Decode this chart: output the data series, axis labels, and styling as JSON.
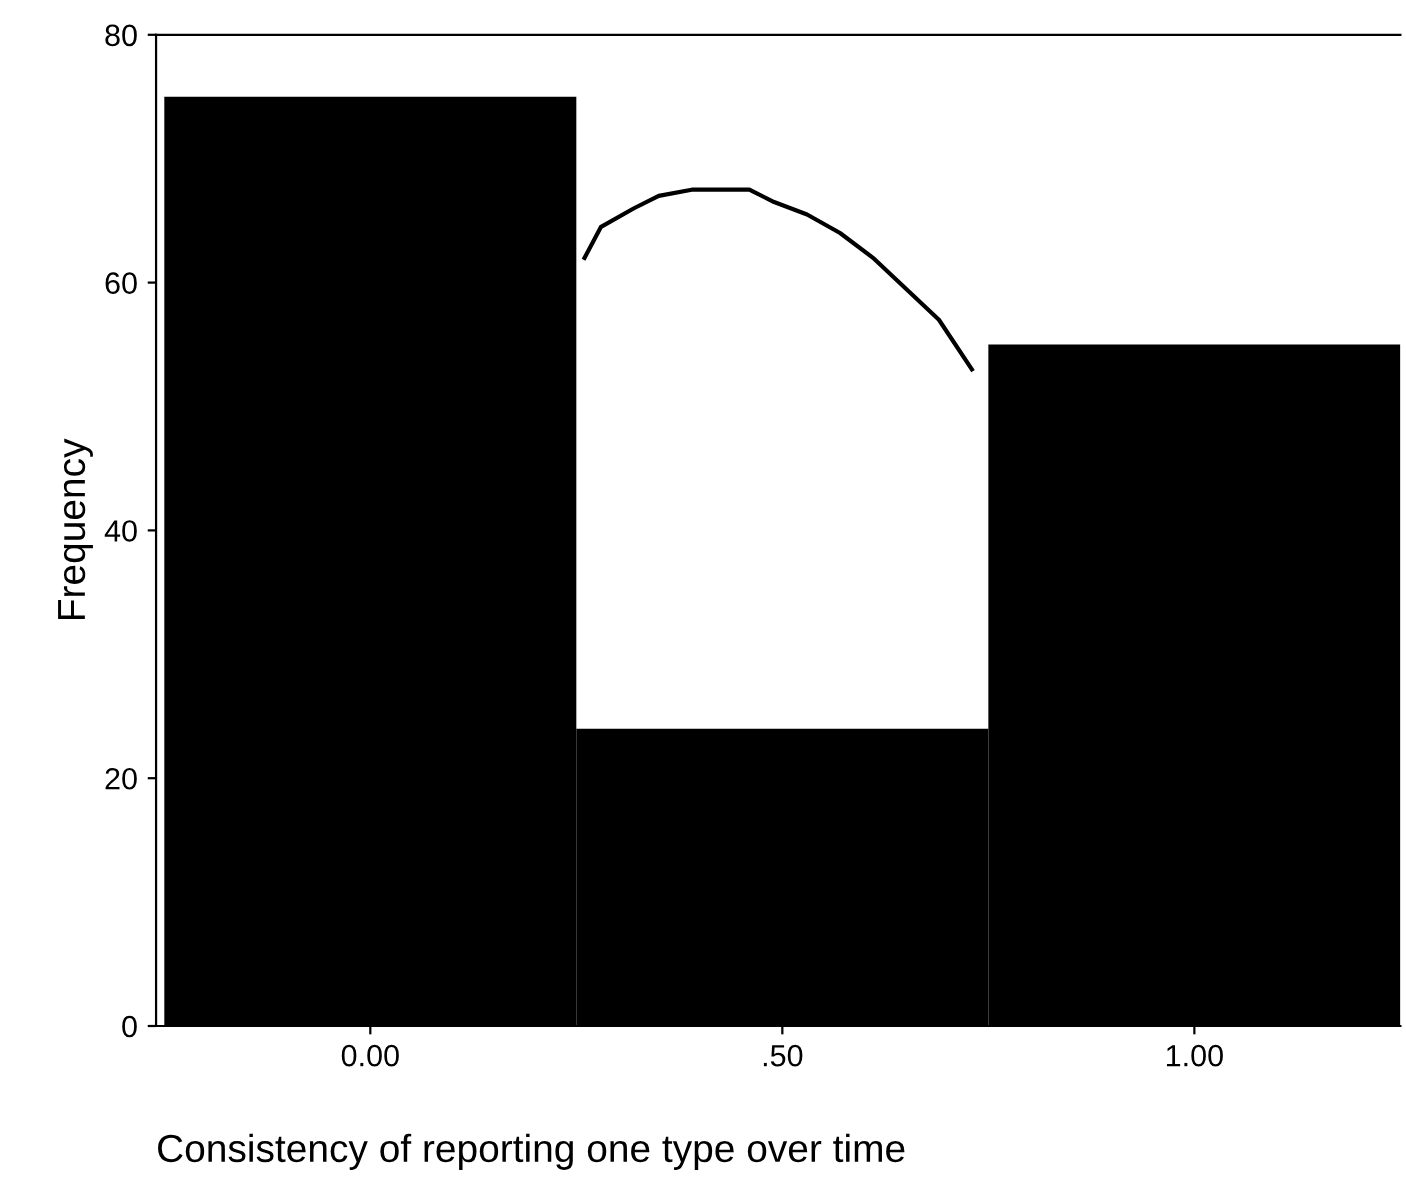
{
  "chart_data": {
    "type": "histogram",
    "xlabel": "Consistency of reporting one type over time",
    "ylabel": "Frequency",
    "bins": [
      -0.25,
      0.25,
      0.75,
      1.25
    ],
    "values": [
      75,
      24,
      55
    ],
    "color": "#000000",
    "series": [
      {
        "type": "line",
        "color": "#000000",
        "x": [
          0.26,
          0.28,
          0.32,
          0.35,
          0.39,
          0.46,
          0.49,
          0.53,
          0.57,
          0.61,
          0.65,
          0.69,
          0.73
        ],
        "values": [
          62,
          64.5,
          66,
          67,
          67.5,
          67.5,
          66.5,
          65.5,
          64,
          62,
          59.5,
          57,
          53
        ]
      }
    ],
    "xlim": [
      -0.26,
      1.25
    ],
    "ylim": [
      0,
      80
    ],
    "xticks": [
      {
        "value": 0,
        "label": "0.00"
      },
      {
        "value": 0.5,
        "label": ".50"
      },
      {
        "value": 1,
        "label": "1.00"
      }
    ],
    "yticks": [
      0,
      20,
      40,
      60,
      80
    ],
    "grid": false,
    "legend": false
  }
}
